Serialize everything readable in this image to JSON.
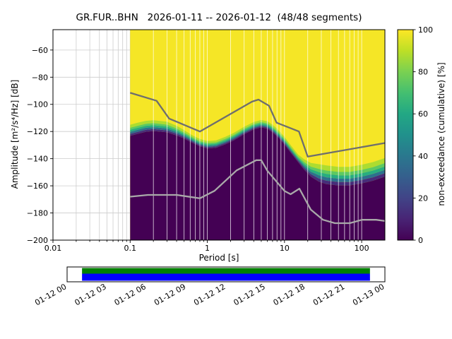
{
  "title": "GR.FUR..BHN   2026-01-11 -- 2026-01-12  (48/48 segments)",
  "axes": {
    "xlabel": "Period [s]",
    "ylabel": "Amplitude [m²/s⁴/Hz] [dB]"
  },
  "colorbar": {
    "label": "non-exceedance (cumulative) [%]",
    "ticks": [
      0,
      20,
      40,
      60,
      80,
      100
    ],
    "tick_labels": [
      "0",
      "20",
      "40",
      "60",
      "80",
      "100"
    ],
    "viridis": [
      "#440154",
      "#482475",
      "#414487",
      "#355f8d",
      "#2a788e",
      "#21918c",
      "#22a884",
      "#44bf70",
      "#7ad151",
      "#bddf26",
      "#fde725"
    ]
  },
  "chart_data": {
    "type": "heatmap",
    "subtype": "ppsd-cumulative-non-exceedance",
    "title": "GR.FUR..BHN   2026-01-11 -- 2026-01-12  (48/48 segments)",
    "xlabel": "Period [s]",
    "ylabel": "Amplitude [m²/s⁴/Hz] [dB]",
    "xscale": "log",
    "xlim": [
      0.01,
      200
    ],
    "ylim": [
      -200,
      -45
    ],
    "x_major_ticks": [
      0.01,
      0.1,
      1,
      10,
      100
    ],
    "x_major_labels": [
      "0.01",
      "0.1",
      "1",
      "10",
      "100"
    ],
    "y_ticks": [
      -60,
      -80,
      -100,
      -120,
      -140,
      -160,
      -180,
      -200
    ],
    "y_tick_labels": [
      "−60",
      "−80",
      "−100",
      "−120",
      "−140",
      "−160",
      "−180",
      "−200"
    ],
    "colorbar_range": [
      0,
      100
    ],
    "data_period_range": [
      0.1,
      200
    ],
    "high_color": "#f5e626",
    "low_color": "#440154",
    "median_boundary_db": [
      [
        0.1,
        -121
      ],
      [
        0.125,
        -119.5
      ],
      [
        0.16,
        -118
      ],
      [
        0.2,
        -117.5
      ],
      [
        0.25,
        -118
      ],
      [
        0.3,
        -118.5
      ],
      [
        0.4,
        -121
      ],
      [
        0.5,
        -123.5
      ],
      [
        0.65,
        -127
      ],
      [
        0.8,
        -129.5
      ],
      [
        1.0,
        -131
      ],
      [
        1.3,
        -130.5
      ],
      [
        1.7,
        -128
      ],
      [
        2.2,
        -125
      ],
      [
        3,
        -120.5
      ],
      [
        4,
        -117
      ],
      [
        5,
        -115.5
      ],
      [
        6,
        -116.5
      ],
      [
        7,
        -119
      ],
      [
        8,
        -122
      ],
      [
        9,
        -125
      ],
      [
        10,
        -128
      ],
      [
        12,
        -134
      ],
      [
        15,
        -141
      ],
      [
        18,
        -146
      ],
      [
        22,
        -150.5
      ],
      [
        28,
        -153.5
      ],
      [
        35,
        -155
      ],
      [
        50,
        -156
      ],
      [
        70,
        -156
      ],
      [
        100,
        -154.5
      ],
      [
        140,
        -152.5
      ],
      [
        200,
        -149.5
      ]
    ],
    "transition_halfwidth": [
      [
        0.1,
        1.5
      ],
      [
        0.35,
        1.4
      ],
      [
        0.6,
        1.0
      ],
      [
        15,
        1.0
      ],
      [
        30,
        2.5
      ],
      [
        200,
        2.5
      ]
    ],
    "strip_offsets": [
      [
        4,
        2.5,
        "#addc30"
      ],
      [
        2.5,
        1.5,
        "#5ec962"
      ],
      [
        1.5,
        0.5,
        "#28ae80"
      ],
      [
        0.5,
        -0.5,
        "#2c728e"
      ],
      [
        -0.5,
        -1.5,
        "#472d7b"
      ]
    ],
    "noise_models": {
      "nhnm": {
        "color": "#6e6e6e",
        "points": [
          [
            0.1,
            -91.5
          ],
          [
            0.22,
            -97.4
          ],
          [
            0.32,
            -110.5
          ],
          [
            0.8,
            -120
          ],
          [
            3.8,
            -98
          ],
          [
            4.6,
            -96.5
          ],
          [
            6.3,
            -101
          ],
          [
            7.9,
            -113.5
          ],
          [
            15.4,
            -120
          ],
          [
            20,
            -138.5
          ],
          [
            200,
            -128.5
          ]
        ]
      },
      "nlnm": {
        "color": "#a9a9a9",
        "points": [
          [
            0.1,
            -168
          ],
          [
            0.17,
            -166.7
          ],
          [
            0.4,
            -166.7
          ],
          [
            0.8,
            -169.2
          ],
          [
            1.24,
            -163.7
          ],
          [
            2.4,
            -148.6
          ],
          [
            4.3,
            -141.1
          ],
          [
            5,
            -141.1
          ],
          [
            6,
            -149
          ],
          [
            10,
            -163.8
          ],
          [
            12,
            -166.2
          ],
          [
            15.6,
            -162.1
          ],
          [
            21.9,
            -177.5
          ],
          [
            31.6,
            -185
          ],
          [
            45,
            -187.5
          ],
          [
            70,
            -187.5
          ],
          [
            101,
            -185
          ],
          [
            154,
            -185
          ],
          [
            200,
            -185.9
          ]
        ]
      }
    },
    "availability": {
      "tick_labels": [
        "01-12 00",
        "01-12 03",
        "01-12 06",
        "01-12 09",
        "01-12 12",
        "01-12 15",
        "01-12 18",
        "01-12 21",
        "01-13 00"
      ],
      "coverage_fraction": [
        0.047,
        0.953
      ],
      "top_stripe_color": "#008000",
      "bottom_stripe_color": "#0000ff"
    }
  }
}
